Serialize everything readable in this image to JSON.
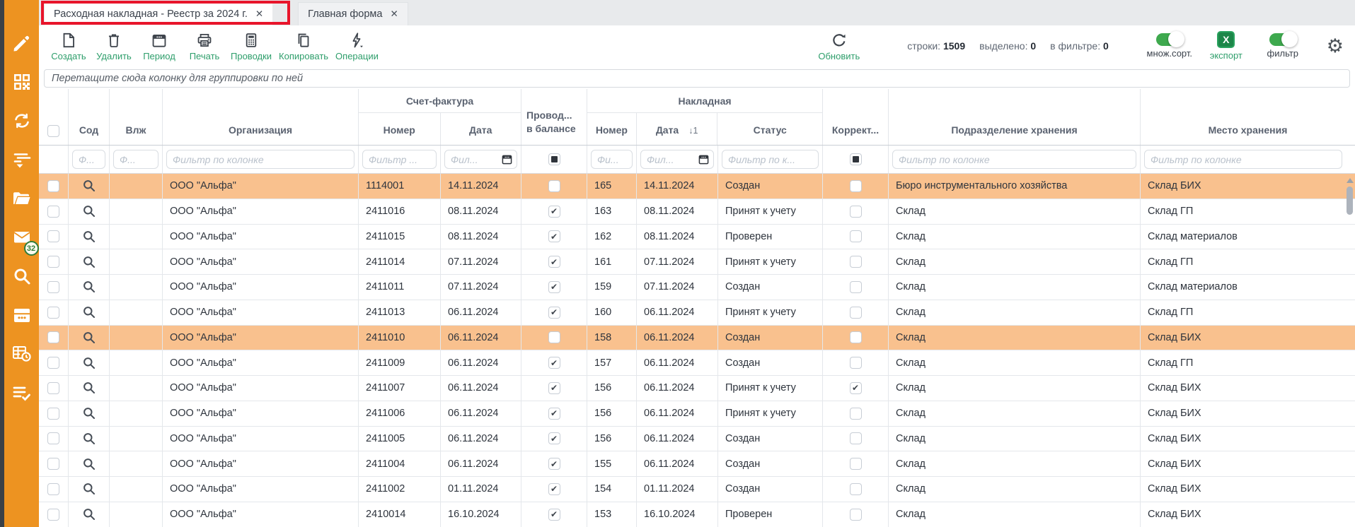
{
  "colors": {
    "accent_orange": "#ED9321",
    "row_highlight": "#F9C18E",
    "action_green": "#2E9E6B",
    "toggle_green": "#3EA94E",
    "excel_green": "#1D8649",
    "annotation_red": "#E8152B"
  },
  "icons": {
    "gear": "⚙",
    "close": "✕"
  },
  "sidebar": {
    "mail_badge": "32"
  },
  "tabs": [
    {
      "label": "Расходная накладная - Реестр за 2024 г.",
      "close": "✕"
    },
    {
      "label": "Главная форма",
      "close": "✕"
    }
  ],
  "toolbar": {
    "buttons": [
      {
        "label": "Создать"
      },
      {
        "label": "Удалить"
      },
      {
        "label": "Период"
      },
      {
        "label": "Печать"
      },
      {
        "label": "Проводки"
      },
      {
        "label": "Копировать"
      },
      {
        "label": "Операции"
      }
    ],
    "refresh_label": "Обновить",
    "stats": {
      "rows_label": "строки:",
      "rows_value": "1509",
      "selected_label": "выделено:",
      "selected_value": "0",
      "filtered_label": "в фильтре:",
      "filtered_value": "0"
    },
    "toggles": {
      "multisort_label": "множ.сорт.",
      "export_label": "экспорт",
      "filter_label": "фильтр"
    }
  },
  "group_area": {
    "text": "Перетащите сюда колонку для группировки по ней"
  },
  "table": {
    "headers": {
      "sod": "Сод",
      "vlzh": "Влж",
      "org": "Организация",
      "sf_group": "Счет-фактура",
      "sf_num": "Номер",
      "sf_date": "Дата",
      "posted_line1": "Провод...",
      "posted_line2": "в балансе",
      "n_group": "Накладная",
      "n_num": "Номер",
      "n_date": "Дата",
      "sort_badge": "↓1",
      "status": "Статус",
      "corr": "Коррект...",
      "dept": "Подразделение хранения",
      "place": "Место хранения"
    },
    "filters": {
      "sod": "Ф...",
      "vlzh": "Ф...",
      "org": "Фильтр по колонке",
      "sf_num": "Фильтр ...",
      "sf_date": "Фил...",
      "n_num": "Фи...",
      "n_date": "Фил...",
      "status": "Фильтр по к...",
      "dept": "Фильтр по колонке",
      "place": "Фильтр по колонке"
    },
    "rows": [
      {
        "org": "ООО \"Альфа\"",
        "sf_num": "1114001",
        "sf_date": "14.11.2024",
        "posted": false,
        "num": "165",
        "date": "14.11.2024",
        "status": "Создан",
        "corr": false,
        "dept": "Бюро инструментального хозяйства",
        "place": "Склад БИХ",
        "selected": true
      },
      {
        "org": "ООО \"Альфа\"",
        "sf_num": "2411016",
        "sf_date": "08.11.2024",
        "posted": true,
        "num": "163",
        "date": "08.11.2024",
        "status": "Принят к учету",
        "corr": false,
        "dept": "Склад",
        "place": "Склад ГП",
        "selected": false
      },
      {
        "org": "ООО \"Альфа\"",
        "sf_num": "2411015",
        "sf_date": "08.11.2024",
        "posted": true,
        "num": "162",
        "date": "08.11.2024",
        "status": "Проверен",
        "corr": false,
        "dept": "Склад",
        "place": "Склад материалов",
        "selected": false
      },
      {
        "org": "ООО \"Альфа\"",
        "sf_num": "2411014",
        "sf_date": "07.11.2024",
        "posted": true,
        "num": "161",
        "date": "07.11.2024",
        "status": "Принят к учету",
        "corr": false,
        "dept": "Склад",
        "place": "Склад ГП",
        "selected": false
      },
      {
        "org": "ООО \"Альфа\"",
        "sf_num": "2411011",
        "sf_date": "07.11.2024",
        "posted": true,
        "num": "159",
        "date": "07.11.2024",
        "status": "Создан",
        "corr": false,
        "dept": "Склад",
        "place": "Склад материалов",
        "selected": false
      },
      {
        "org": "ООО \"Альфа\"",
        "sf_num": "2411013",
        "sf_date": "06.11.2024",
        "posted": true,
        "num": "160",
        "date": "06.11.2024",
        "status": "Принят к учету",
        "corr": false,
        "dept": "Склад",
        "place": "Склад ГП",
        "selected": false
      },
      {
        "org": "ООО \"Альфа\"",
        "sf_num": "2411010",
        "sf_date": "06.11.2024",
        "posted": false,
        "num": "158",
        "date": "06.11.2024",
        "status": "Создан",
        "corr": false,
        "dept": "Склад",
        "place": "Склад БИХ",
        "selected": true
      },
      {
        "org": "ООО \"Альфа\"",
        "sf_num": "2411009",
        "sf_date": "06.11.2024",
        "posted": true,
        "num": "157",
        "date": "06.11.2024",
        "status": "Создан",
        "corr": false,
        "dept": "Склад",
        "place": "Склад ГП",
        "selected": false
      },
      {
        "org": "ООО \"Альфа\"",
        "sf_num": "2411007",
        "sf_date": "06.11.2024",
        "posted": true,
        "num": "156",
        "date": "06.11.2024",
        "status": "Принят к учету",
        "corr": true,
        "dept": "Склад",
        "place": "Склад БИХ",
        "selected": false
      },
      {
        "org": "ООО \"Альфа\"",
        "sf_num": "2411006",
        "sf_date": "06.11.2024",
        "posted": true,
        "num": "156",
        "date": "06.11.2024",
        "status": "Принят к учету",
        "corr": false,
        "dept": "Склад",
        "place": "Склад БИХ",
        "selected": false
      },
      {
        "org": "ООО \"Альфа\"",
        "sf_num": "2411005",
        "sf_date": "06.11.2024",
        "posted": true,
        "num": "156",
        "date": "06.11.2024",
        "status": "Создан",
        "corr": false,
        "dept": "Склад",
        "place": "Склад БИХ",
        "selected": false
      },
      {
        "org": "ООО \"Альфа\"",
        "sf_num": "2411004",
        "sf_date": "06.11.2024",
        "posted": true,
        "num": "155",
        "date": "06.11.2024",
        "status": "Создан",
        "corr": false,
        "dept": "Склад",
        "place": "Склад БИХ",
        "selected": false
      },
      {
        "org": "ООО \"Альфа\"",
        "sf_num": "2411002",
        "sf_date": "01.11.2024",
        "posted": true,
        "num": "154",
        "date": "01.11.2024",
        "status": "Создан",
        "corr": false,
        "dept": "Склад",
        "place": "Склад БИХ",
        "selected": false
      },
      {
        "org": "ООО \"Альфа\"",
        "sf_num": "2410014",
        "sf_date": "16.10.2024",
        "posted": true,
        "num": "153",
        "date": "16.10.2024",
        "status": "Проверен",
        "corr": false,
        "dept": "Склад",
        "place": "Склад БИХ",
        "selected": false
      }
    ]
  }
}
